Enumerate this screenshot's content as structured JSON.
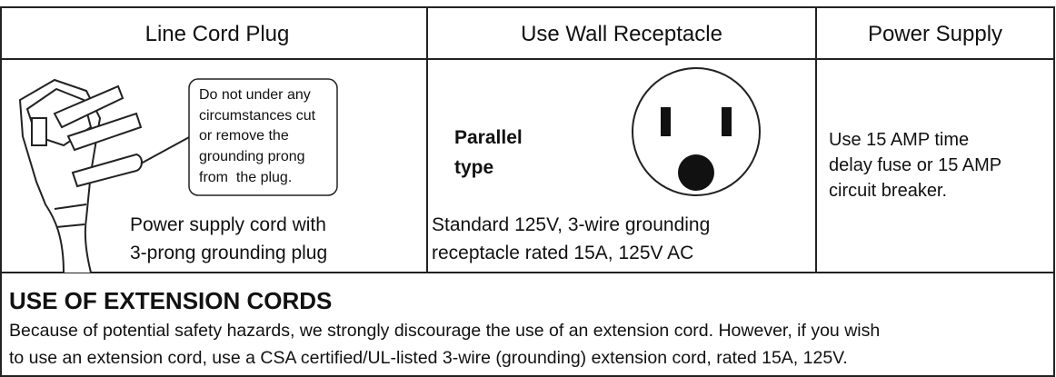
{
  "table": {
    "headers": [
      "Line Cord Plug",
      "Use Wall Receptacle",
      "Power Supply"
    ],
    "plug": {
      "callout": [
        "Do not under any",
        "circumstances cut",
        "or remove the",
        "grounding prong",
        "from  the plug."
      ],
      "caption": [
        "Power supply cord with",
        "3-prong grounding plug"
      ]
    },
    "receptacle": {
      "type_label": [
        "Parallel",
        "type"
      ],
      "caption": [
        "Standard 125V, 3-wire grounding",
        "receptacle rated 15A, 125V AC"
      ]
    },
    "power_supply": [
      "Use 15 AMP time",
      "delay fuse or 15 AMP",
      "circuit breaker."
    ]
  },
  "extension": {
    "title": "USE OF EXTENSION CORDS",
    "lines": [
      "Because of potential safety hazards, we strongly discourage the use of an extension cord. However, if you wish",
      "to use an extension cord, use a CSA certified/UL-listed 3-wire (grounding) extension cord, rated 15A, 125V."
    ]
  }
}
